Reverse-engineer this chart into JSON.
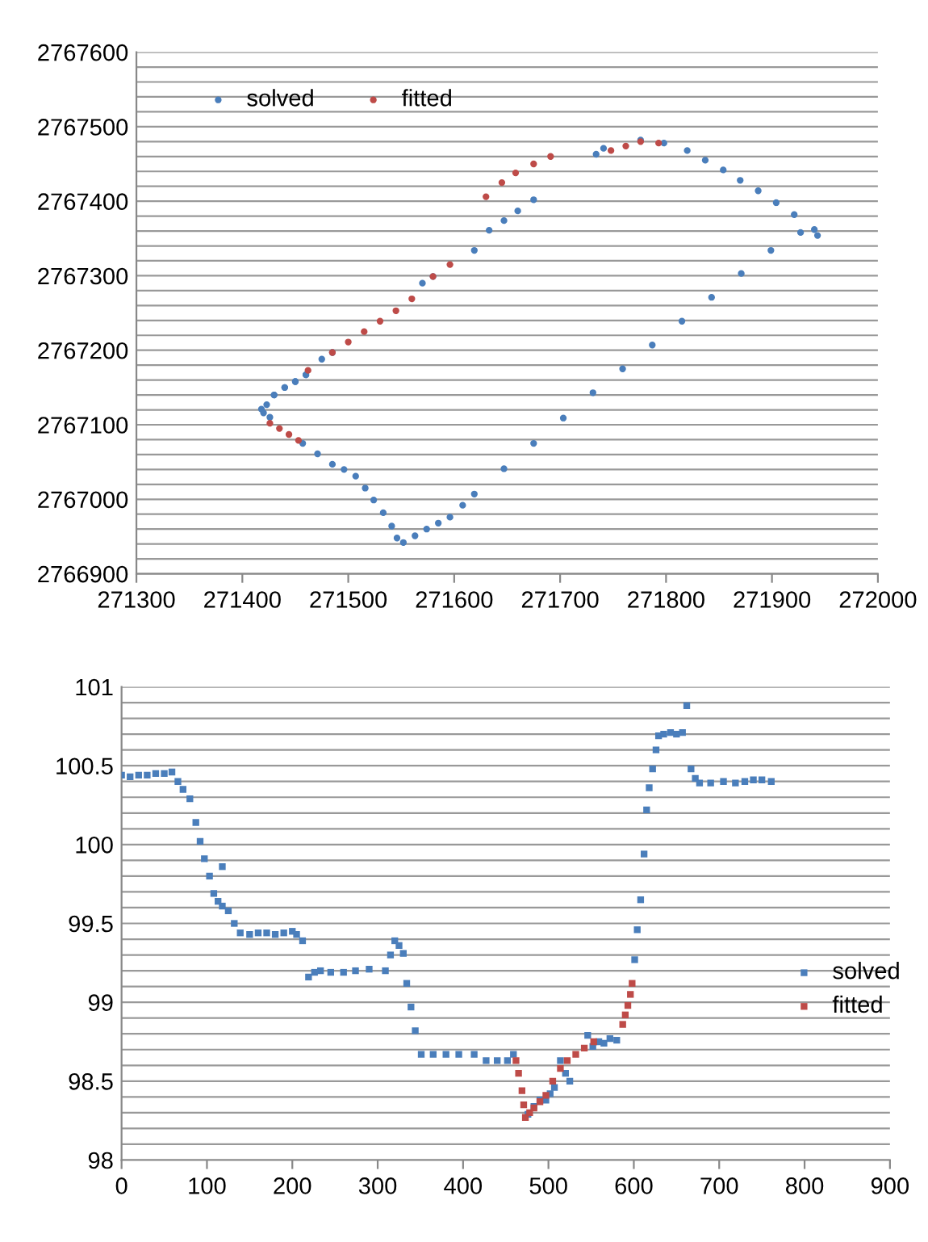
{
  "chart_data": [
    {
      "type": "scatter",
      "marker": "circle",
      "legend": "top left",
      "grid": "y",
      "xlim": [
        271300,
        272000
      ],
      "xticks": [
        271300,
        271400,
        271500,
        271600,
        271700,
        271800,
        271900,
        272000
      ],
      "ylim": [
        2766900,
        2767600
      ],
      "yticks": [
        2766900,
        {
          "value": 2766920,
          "label": null
        },
        {
          "value": 2766940,
          "label": null
        },
        {
          "value": 2766960,
          "label": null
        },
        {
          "value": 2766980,
          "label": null
        },
        2767000,
        {
          "value": 2767020,
          "label": null
        },
        {
          "value": 2767040,
          "label": null
        },
        {
          "value": 2767060,
          "label": null
        },
        {
          "value": 2767080,
          "label": null
        },
        2767100,
        {
          "value": 2767120,
          "label": null
        },
        {
          "value": 2767140,
          "label": null
        },
        {
          "value": 2767160,
          "label": null
        },
        {
          "value": 2767180,
          "label": null
        },
        2767200,
        {
          "value": 2767220,
          "label": null
        },
        {
          "value": 2767240,
          "label": null
        },
        {
          "value": 2767260,
          "label": null
        },
        {
          "value": 2767280,
          "label": null
        },
        2767300,
        {
          "value": 2767320,
          "label": null
        },
        {
          "value": 2767340,
          "label": null
        },
        {
          "value": 2767360,
          "label": null
        },
        {
          "value": 2767380,
          "label": null
        },
        2767400,
        {
          "value": 2767420,
          "label": null
        },
        {
          "value": 2767440,
          "label": null
        },
        {
          "value": 2767460,
          "label": null
        },
        {
          "value": 2767480,
          "label": null
        },
        2767500,
        {
          "value": 2767520,
          "label": null
        },
        {
          "value": 2767540,
          "label": null
        },
        {
          "value": 2767560,
          "label": null
        },
        {
          "value": 2767580,
          "label": null
        },
        2767600
      ],
      "series": [
        {
          "name": "solved",
          "color": "#4a7ebb",
          "x": [
            271460,
            271450,
            271440,
            271430,
            271423,
            271418,
            271420,
            271426,
            271457,
            271471,
            271485,
            271496,
            271507,
            271516,
            271524,
            271533,
            271541,
            271546,
            271552,
            271563,
            271574,
            271585,
            271596,
            271608,
            271619,
            271647,
            271675,
            271703,
            271731,
            271759,
            271787,
            271815,
            271843,
            271871,
            271899,
            271927,
            271943,
            271940,
            271921,
            271904,
            271887,
            271870,
            271854,
            271837,
            271820,
            271798,
            271776,
            271741,
            271734,
            271675,
            271660,
            271647,
            271633,
            271619,
            271580,
            271570,
            271485,
            271475,
            271460,
            271450,
            271440,
            271430
          ],
          "values": [
            2767167,
            2767158,
            2767150,
            2767140,
            2767127,
            2767121,
            2767116,
            2767110,
            2767075,
            2767061,
            2767047,
            2767040,
            2767031,
            2767015,
            2766999,
            2766982,
            2766964,
            2766948,
            2766942,
            2766951,
            2766960,
            2766968,
            2766976,
            2766992,
            2767007,
            2767041,
            2767075,
            2767109,
            2767143,
            2767175,
            2767207,
            2767239,
            2767271,
            2767303,
            2767334,
            2767358,
            2767354,
            2767362,
            2767382,
            2767398,
            2767414,
            2767428,
            2767442,
            2767455,
            2767468,
            2767478,
            2767482,
            2767471,
            2767463,
            2767402,
            2767387,
            2767374,
            2767361,
            2767334,
            2767299,
            2767290,
            2767197,
            2767188,
            2767167,
            2767158,
            2767150,
            2767140
          ]
        },
        {
          "name": "fitted",
          "color": "#be4b48",
          "x": [
            271426,
            271435,
            271444,
            271453,
            271462,
            271485,
            271500,
            271515,
            271530,
            271545,
            271560,
            271580,
            271596,
            271630,
            271645,
            271658,
            271675,
            271691,
            271748,
            271762,
            271776,
            271793
          ],
          "values": [
            2767102,
            2767095,
            2767087,
            2767079,
            2767173,
            2767197,
            2767211,
            2767225,
            2767239,
            2767253,
            2767269,
            2767299,
            2767315,
            2767406,
            2767425,
            2767438,
            2767450,
            2767460,
            2767468,
            2767474,
            2767480,
            2767478
          ]
        }
      ]
    },
    {
      "type": "scatter",
      "marker": "square",
      "legend": "right",
      "grid": "y",
      "xlim": [
        0,
        900
      ],
      "xticks": [
        0,
        100,
        200,
        300,
        400,
        500,
        600,
        700,
        800,
        900
      ],
      "ylim": [
        98,
        101
      ],
      "yticks": [
        98,
        {
          "value": 98.1,
          "label": null
        },
        {
          "value": 98.2,
          "label": null
        },
        {
          "value": 98.3,
          "label": null
        },
        {
          "value": 98.4,
          "label": null
        },
        98.5,
        {
          "value": 98.6,
          "label": null
        },
        {
          "value": 98.7,
          "label": null
        },
        {
          "value": 98.8,
          "label": null
        },
        {
          "value": 98.9,
          "label": null
        },
        99,
        {
          "value": 99.1,
          "label": null
        },
        {
          "value": 99.2,
          "label": null
        },
        {
          "value": 99.3,
          "label": null
        },
        {
          "value": 99.4,
          "label": null
        },
        99.5,
        {
          "value": 99.6,
          "label": null
        },
        {
          "value": 99.7,
          "label": null
        },
        {
          "value": 99.8,
          "label": null
        },
        {
          "value": 99.9,
          "label": null
        },
        100,
        {
          "value": 100.1,
          "label": null
        },
        {
          "value": 100.2,
          "label": null
        },
        {
          "value": 100.3,
          "label": null
        },
        {
          "value": 100.4,
          "label": null
        },
        100.5,
        {
          "value": 100.6,
          "label": null
        },
        {
          "value": 100.7,
          "label": null
        },
        {
          "value": 100.8,
          "label": null
        },
        {
          "value": 100.9,
          "label": null
        },
        101
      ],
      "series": [
        {
          "name": "solved",
          "color": "#4a7ebb",
          "x": [
            0,
            10,
            20,
            30,
            40,
            50,
            59,
            66,
            72,
            80,
            87,
            92,
            97,
            103,
            108,
            113,
            118,
            118,
            125,
            132,
            139,
            150,
            160,
            170,
            180,
            190,
            200,
            205,
            212,
            219,
            226,
            233,
            245,
            260,
            274,
            290,
            309,
            315,
            320,
            325,
            330,
            334,
            339,
            344,
            351,
            365,
            380,
            395,
            413,
            427,
            440,
            452,
            459,
            476,
            483,
            490,
            497,
            502,
            507,
            514,
            520,
            525,
            546,
            552,
            559,
            565,
            572,
            580,
            601,
            604,
            608,
            612,
            615,
            618,
            622,
            626,
            629,
            635,
            643,
            650,
            657,
            662,
            667,
            672,
            677,
            690,
            705,
            719,
            730,
            740,
            750,
            761
          ],
          "values": [
            100.44,
            100.43,
            100.44,
            100.44,
            100.45,
            100.45,
            100.46,
            100.4,
            100.35,
            100.29,
            100.14,
            100.02,
            99.91,
            99.8,
            99.69,
            99.64,
            99.61,
            99.86,
            99.58,
            99.5,
            99.44,
            99.43,
            99.44,
            99.44,
            99.43,
            99.44,
            99.45,
            99.43,
            99.39,
            99.16,
            99.19,
            99.2,
            99.19,
            99.19,
            99.2,
            99.21,
            99.2,
            99.3,
            99.39,
            99.36,
            99.31,
            99.12,
            98.97,
            98.82,
            98.67,
            98.67,
            98.67,
            98.67,
            98.67,
            98.63,
            98.63,
            98.63,
            98.67,
            98.29,
            98.34,
            98.38,
            98.38,
            98.42,
            98.46,
            98.63,
            98.55,
            98.5,
            98.79,
            98.72,
            98.75,
            98.74,
            98.77,
            98.76,
            99.27,
            99.46,
            99.65,
            99.94,
            100.22,
            100.36,
            100.48,
            100.6,
            100.69,
            100.7,
            100.71,
            100.7,
            100.71,
            100.88,
            100.48,
            100.42,
            100.39,
            100.39,
            100.4,
            100.39,
            100.4,
            100.41,
            100.41,
            100.4
          ]
        },
        {
          "name": "fitted",
          "color": "#be4b48",
          "x": [
            462,
            465,
            469,
            471,
            473,
            478,
            483,
            490,
            497,
            505,
            514,
            522,
            532,
            542,
            553,
            587,
            590,
            593,
            596,
            598
          ],
          "values": [
            98.63,
            98.55,
            98.44,
            98.35,
            98.27,
            98.3,
            98.33,
            98.37,
            98.41,
            98.5,
            98.58,
            98.63,
            98.67,
            98.71,
            98.75,
            98.86,
            98.92,
            98.98,
            99.05,
            99.12
          ]
        }
      ]
    }
  ]
}
